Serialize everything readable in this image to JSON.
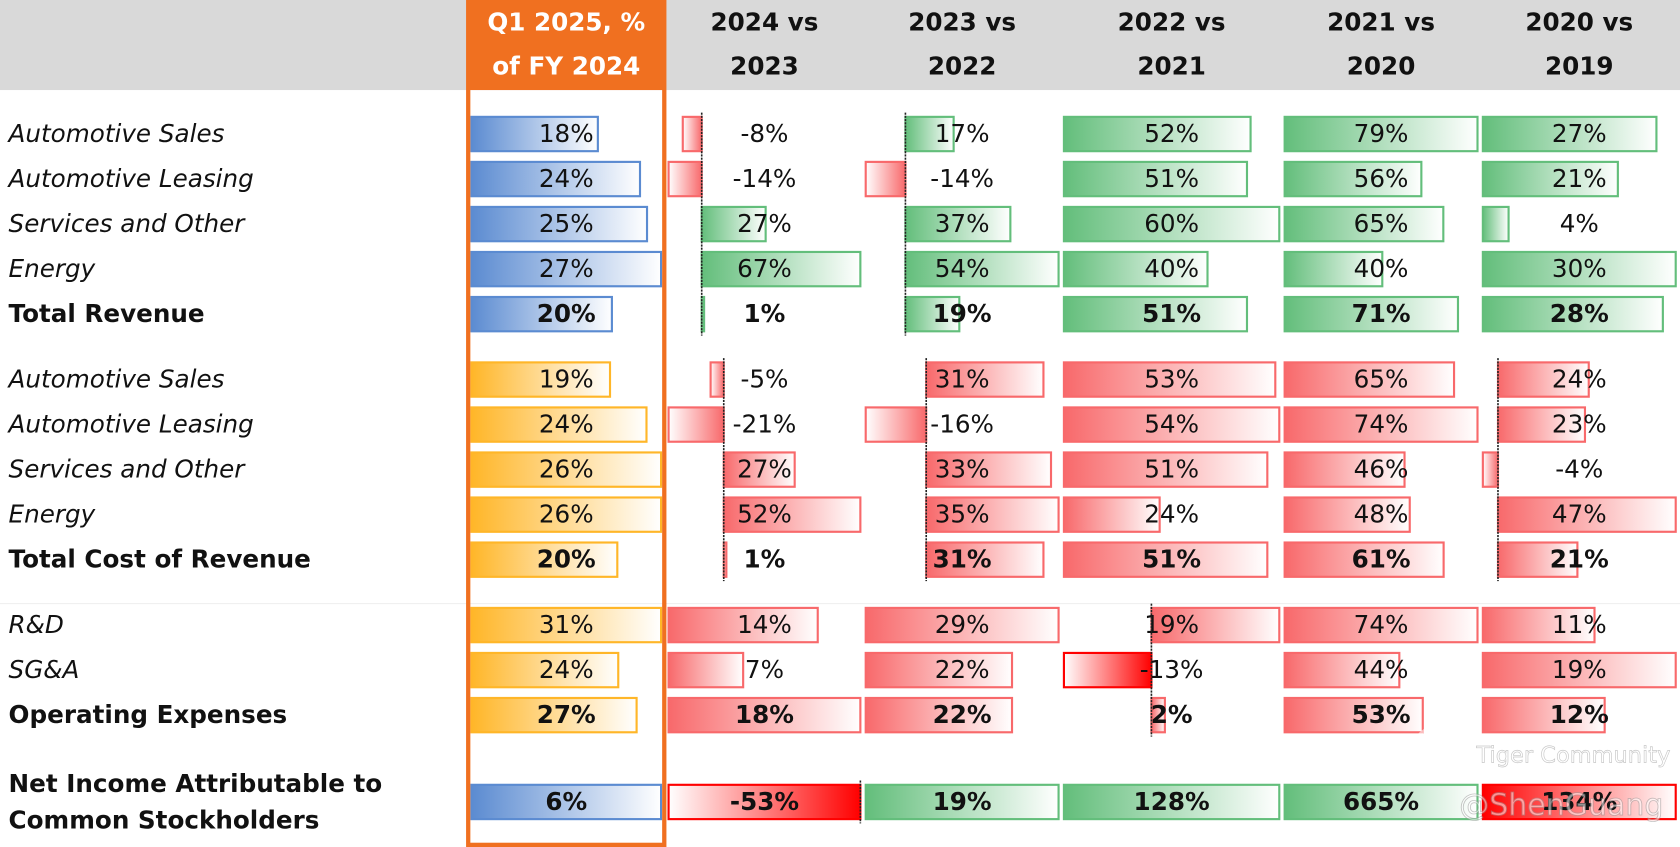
{
  "header": {
    "columns": [
      [
        "Q1 2025, %",
        "of FY 2024"
      ],
      [
        "2024 vs",
        "2023"
      ],
      [
        "2023 vs",
        "2022"
      ],
      [
        "2022 vs",
        "2021"
      ],
      [
        "2021 vs",
        "2020"
      ],
      [
        "2020 vs",
        "2019"
      ]
    ]
  },
  "sections": [
    {
      "rows": [
        {
          "label": [
            "Automotive Sales"
          ],
          "bold": false,
          "cells": [
            {
              "value": 18,
              "label": "18%",
              "color": "#5b8bd1"
            },
            {
              "value": -8,
              "label": "-8%",
              "color": "#f8696b"
            },
            {
              "value": 17,
              "label": "17%",
              "color": "#63be7b"
            },
            {
              "value": 52,
              "label": "52%",
              "color": "#63be7b"
            },
            {
              "value": 79,
              "label": "79%",
              "color": "#63be7b"
            },
            {
              "value": 27,
              "label": "27%",
              "color": "#63be7b"
            }
          ]
        },
        {
          "label": [
            "Automotive Leasing"
          ],
          "bold": false,
          "cells": [
            {
              "value": 24,
              "label": "24%",
              "color": "#5b8bd1"
            },
            {
              "value": -14,
              "label": "-14%",
              "color": "#f8696b"
            },
            {
              "value": -14,
              "label": "-14%",
              "color": "#f8696b"
            },
            {
              "value": 51,
              "label": "51%",
              "color": "#63be7b"
            },
            {
              "value": 56,
              "label": "56%",
              "color": "#63be7b"
            },
            {
              "value": 21,
              "label": "21%",
              "color": "#63be7b"
            }
          ]
        },
        {
          "label": [
            "Services and Other"
          ],
          "bold": false,
          "cells": [
            {
              "value": 25,
              "label": "25%",
              "color": "#5b8bd1"
            },
            {
              "value": 27,
              "label": "27%",
              "color": "#63be7b"
            },
            {
              "value": 37,
              "label": "37%",
              "color": "#63be7b"
            },
            {
              "value": 60,
              "label": "60%",
              "color": "#63be7b"
            },
            {
              "value": 65,
              "label": "65%",
              "color": "#63be7b"
            },
            {
              "value": 4,
              "label": "4%",
              "color": "#63be7b"
            }
          ]
        },
        {
          "label": [
            "Energy"
          ],
          "bold": false,
          "cells": [
            {
              "value": 27,
              "label": "27%",
              "color": "#5b8bd1"
            },
            {
              "value": 67,
              "label": "67%",
              "color": "#63be7b"
            },
            {
              "value": 54,
              "label": "54%",
              "color": "#63be7b"
            },
            {
              "value": 40,
              "label": "40%",
              "color": "#63be7b"
            },
            {
              "value": 40,
              "label": "40%",
              "color": "#63be7b"
            },
            {
              "value": 30,
              "label": "30%",
              "color": "#63be7b"
            }
          ]
        },
        {
          "label": [
            "Total Revenue"
          ],
          "bold": true,
          "cells": [
            {
              "value": 20,
              "label": "20%",
              "color": "#5b8bd1"
            },
            {
              "value": 1,
              "label": "1%",
              "color": "#63be7b"
            },
            {
              "value": 19,
              "label": "19%",
              "color": "#63be7b"
            },
            {
              "value": 51,
              "label": "51%",
              "color": "#63be7b"
            },
            {
              "value": 71,
              "label": "71%",
              "color": "#63be7b"
            },
            {
              "value": 28,
              "label": "28%",
              "color": "#63be7b"
            }
          ]
        }
      ]
    },
    {
      "rows": [
        {
          "label": [
            "Automotive Sales"
          ],
          "bold": false,
          "cells": [
            {
              "value": 19,
              "label": "19%",
              "color": "#ffb628"
            },
            {
              "value": -5,
              "label": "-5%",
              "color": "#f8696b"
            },
            {
              "value": 31,
              "label": "31%",
              "color": "#f8696b"
            },
            {
              "value": 53,
              "label": "53%",
              "color": "#f8696b"
            },
            {
              "value": 65,
              "label": "65%",
              "color": "#f8696b"
            },
            {
              "value": 24,
              "label": "24%",
              "color": "#f8696b"
            }
          ]
        },
        {
          "label": [
            "Automotive Leasing"
          ],
          "bold": false,
          "cells": [
            {
              "value": 24,
              "label": "24%",
              "color": "#ffb628"
            },
            {
              "value": -21,
              "label": "-21%",
              "color": "#f8696b"
            },
            {
              "value": -16,
              "label": "-16%",
              "color": "#f8696b"
            },
            {
              "value": 54,
              "label": "54%",
              "color": "#f8696b"
            },
            {
              "value": 74,
              "label": "74%",
              "color": "#f8696b"
            },
            {
              "value": 23,
              "label": "23%",
              "color": "#f8696b"
            }
          ]
        },
        {
          "label": [
            "Services and Other"
          ],
          "bold": false,
          "cells": [
            {
              "value": 26,
              "label": "26%",
              "color": "#ffb628"
            },
            {
              "value": 27,
              "label": "27%",
              "color": "#f8696b"
            },
            {
              "value": 33,
              "label": "33%",
              "color": "#f8696b"
            },
            {
              "value": 51,
              "label": "51%",
              "color": "#f8696b"
            },
            {
              "value": 46,
              "label": "46%",
              "color": "#f8696b"
            },
            {
              "value": -4,
              "label": "-4%",
              "color": "#f8696b"
            }
          ]
        },
        {
          "label": [
            "Energy"
          ],
          "bold": false,
          "cells": [
            {
              "value": 26,
              "label": "26%",
              "color": "#ffb628"
            },
            {
              "value": 52,
              "label": "52%",
              "color": "#f8696b"
            },
            {
              "value": 35,
              "label": "35%",
              "color": "#f8696b"
            },
            {
              "value": 24,
              "label": "24%",
              "color": "#f8696b"
            },
            {
              "value": 48,
              "label": "48%",
              "color": "#f8696b"
            },
            {
              "value": 47,
              "label": "47%",
              "color": "#f8696b"
            }
          ]
        },
        {
          "label": [
            "Total Cost of Revenue"
          ],
          "bold": true,
          "cells": [
            {
              "value": 20,
              "label": "20%",
              "color": "#ffb628"
            },
            {
              "value": 1,
              "label": "1%",
              "color": "#f8696b"
            },
            {
              "value": 31,
              "label": "31%",
              "color": "#f8696b"
            },
            {
              "value": 51,
              "label": "51%",
              "color": "#f8696b"
            },
            {
              "value": 61,
              "label": "61%",
              "color": "#f8696b"
            },
            {
              "value": 21,
              "label": "21%",
              "color": "#f8696b"
            }
          ]
        }
      ]
    },
    {
      "rows": [
        {
          "label": [
            "R&D"
          ],
          "bold": false,
          "cells": [
            {
              "value": 31,
              "label": "31%",
              "color": "#ffb628"
            },
            {
              "value": 14,
              "label": "14%",
              "color": "#f8696b"
            },
            {
              "value": 29,
              "label": "29%",
              "color": "#f8696b"
            },
            {
              "value": 19,
              "label": "19%",
              "color": "#f8696b"
            },
            {
              "value": 74,
              "label": "74%",
              "color": "#f8696b"
            },
            {
              "value": 11,
              "label": "11%",
              "color": "#f8696b"
            }
          ]
        },
        {
          "label": [
            "SG&A"
          ],
          "bold": false,
          "cells": [
            {
              "value": 24,
              "label": "24%",
              "color": "#ffb628"
            },
            {
              "value": 7,
              "label": "7%",
              "color": "#f8696b"
            },
            {
              "value": 22,
              "label": "22%",
              "color": "#f8696b"
            },
            {
              "value": -13,
              "label": "-13%",
              "color": "#ff0000"
            },
            {
              "value": 44,
              "label": "44%",
              "color": "#f8696b"
            },
            {
              "value": 19,
              "label": "19%",
              "color": "#f8696b"
            }
          ]
        },
        {
          "label": [
            "Operating Expenses"
          ],
          "bold": true,
          "cells": [
            {
              "value": 27,
              "label": "27%",
              "color": "#ffb628"
            },
            {
              "value": 18,
              "label": "18%",
              "color": "#f8696b"
            },
            {
              "value": 22,
              "label": "22%",
              "color": "#f8696b"
            },
            {
              "value": 2,
              "label": "2%",
              "color": "#f8696b"
            },
            {
              "value": 53,
              "label": "53%",
              "color": "#f8696b"
            },
            {
              "value": 12,
              "label": "12%",
              "color": "#f8696b"
            }
          ]
        }
      ]
    },
    {
      "rows": [
        {
          "label": [
            "Net Income Attributable to",
            "Common Stockholders"
          ],
          "bold": true,
          "cells": [
            {
              "value": 6,
              "label": "6%",
              "color": "#5b8bd1"
            },
            {
              "value": -53,
              "label": "-53%",
              "color": "#ff0000"
            },
            {
              "value": 19,
              "label": "19%",
              "color": "#63be7b"
            },
            {
              "value": 128,
              "label": "128%",
              "color": "#63be7b"
            },
            {
              "value": 665,
              "label": "665%",
              "color": "#63be7b"
            },
            {
              "value": 134,
              "label": "134%",
              "color": "#ff0000"
            }
          ]
        }
      ]
    }
  ],
  "watermark": {
    "brand": "Tiger Community",
    "author": "@ShenGuang"
  }
}
